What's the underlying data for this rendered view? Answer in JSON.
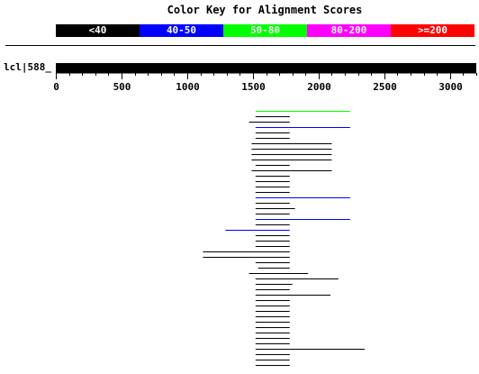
{
  "title": "Color Key for Alignment Scores",
  "legend": [
    {
      "label": "<40",
      "color": "#000000"
    },
    {
      "label": "40-50",
      "color": "#0000ff"
    },
    {
      "label": "50-80",
      "color": "#00ff00"
    },
    {
      "label": "80-200",
      "color": "#ff00ff"
    },
    {
      "label": ">=200",
      "color": "#ff0000"
    }
  ],
  "query": {
    "label": "lcl|588_",
    "length": 3200
  },
  "axis": {
    "min": 0,
    "max": 3200,
    "ticks": [
      "0",
      "500",
      "1000",
      "1500",
      "2000",
      "2500",
      "3000"
    ],
    "minor_step": 100
  },
  "chart_data": {
    "type": "bar",
    "title": "Color Key for Alignment Scores",
    "xlim": [
      0,
      3200
    ],
    "hits": [
      {
        "start": 1520,
        "end": 2240,
        "color": "#00ff00"
      },
      {
        "start": 1520,
        "end": 1780,
        "color": "#000000"
      },
      {
        "start": 1470,
        "end": 1780,
        "color": "#000000"
      },
      {
        "start": 1520,
        "end": 2240,
        "color": "#0000ff"
      },
      {
        "start": 1520,
        "end": 1780,
        "color": "#000000"
      },
      {
        "start": 1520,
        "end": 1780,
        "color": "#000000"
      },
      {
        "start": 1490,
        "end": 2100,
        "color": "#000000"
      },
      {
        "start": 1490,
        "end": 2100,
        "color": "#000000"
      },
      {
        "start": 1490,
        "end": 2100,
        "color": "#000000"
      },
      {
        "start": 1490,
        "end": 2100,
        "color": "#000000"
      },
      {
        "start": 1520,
        "end": 1780,
        "color": "#000000"
      },
      {
        "start": 1490,
        "end": 2100,
        "color": "#000000"
      },
      {
        "start": 1520,
        "end": 1780,
        "color": "#000000"
      },
      {
        "start": 1520,
        "end": 1780,
        "color": "#000000"
      },
      {
        "start": 1520,
        "end": 1780,
        "color": "#000000"
      },
      {
        "start": 1520,
        "end": 1780,
        "color": "#000000"
      },
      {
        "start": 1520,
        "end": 2240,
        "color": "#0000ff"
      },
      {
        "start": 1520,
        "end": 1780,
        "color": "#000000"
      },
      {
        "start": 1520,
        "end": 1820,
        "color": "#000000"
      },
      {
        "start": 1520,
        "end": 1780,
        "color": "#000000"
      },
      {
        "start": 1520,
        "end": 2240,
        "color": "#0000ff"
      },
      {
        "start": 1520,
        "end": 1780,
        "color": "#000000"
      },
      {
        "start": 1290,
        "end": 1780,
        "color": "#0000ff"
      },
      {
        "start": 1520,
        "end": 1780,
        "color": "#000000"
      },
      {
        "start": 1520,
        "end": 1780,
        "color": "#000000"
      },
      {
        "start": 1520,
        "end": 1780,
        "color": "#000000"
      },
      {
        "start": 1120,
        "end": 1780,
        "color": "#000000"
      },
      {
        "start": 1120,
        "end": 1780,
        "color": "#000000"
      },
      {
        "start": 1520,
        "end": 1780,
        "color": "#000000"
      },
      {
        "start": 1540,
        "end": 1780,
        "color": "#000000"
      },
      {
        "start": 1470,
        "end": 1920,
        "color": "#000000"
      },
      {
        "start": 1520,
        "end": 2150,
        "color": "#000000"
      },
      {
        "start": 1520,
        "end": 1800,
        "color": "#000000"
      },
      {
        "start": 1520,
        "end": 1780,
        "color": "#000000"
      },
      {
        "start": 1520,
        "end": 2090,
        "color": "#000000"
      },
      {
        "start": 1520,
        "end": 1780,
        "color": "#000000"
      },
      {
        "start": 1520,
        "end": 1780,
        "color": "#000000"
      },
      {
        "start": 1520,
        "end": 1780,
        "color": "#000000"
      },
      {
        "start": 1520,
        "end": 1780,
        "color": "#000000"
      },
      {
        "start": 1520,
        "end": 1780,
        "color": "#000000"
      },
      {
        "start": 1520,
        "end": 1780,
        "color": "#000000"
      },
      {
        "start": 1520,
        "end": 1780,
        "color": "#000000"
      },
      {
        "start": 1520,
        "end": 1780,
        "color": "#000000"
      },
      {
        "start": 1520,
        "end": 1780,
        "color": "#000000"
      },
      {
        "start": 1520,
        "end": 2350,
        "color": "#000000"
      },
      {
        "start": 1520,
        "end": 1780,
        "color": "#000000"
      },
      {
        "start": 1520,
        "end": 1780,
        "color": "#000000"
      },
      {
        "start": 1520,
        "end": 1780,
        "color": "#000000"
      }
    ]
  }
}
